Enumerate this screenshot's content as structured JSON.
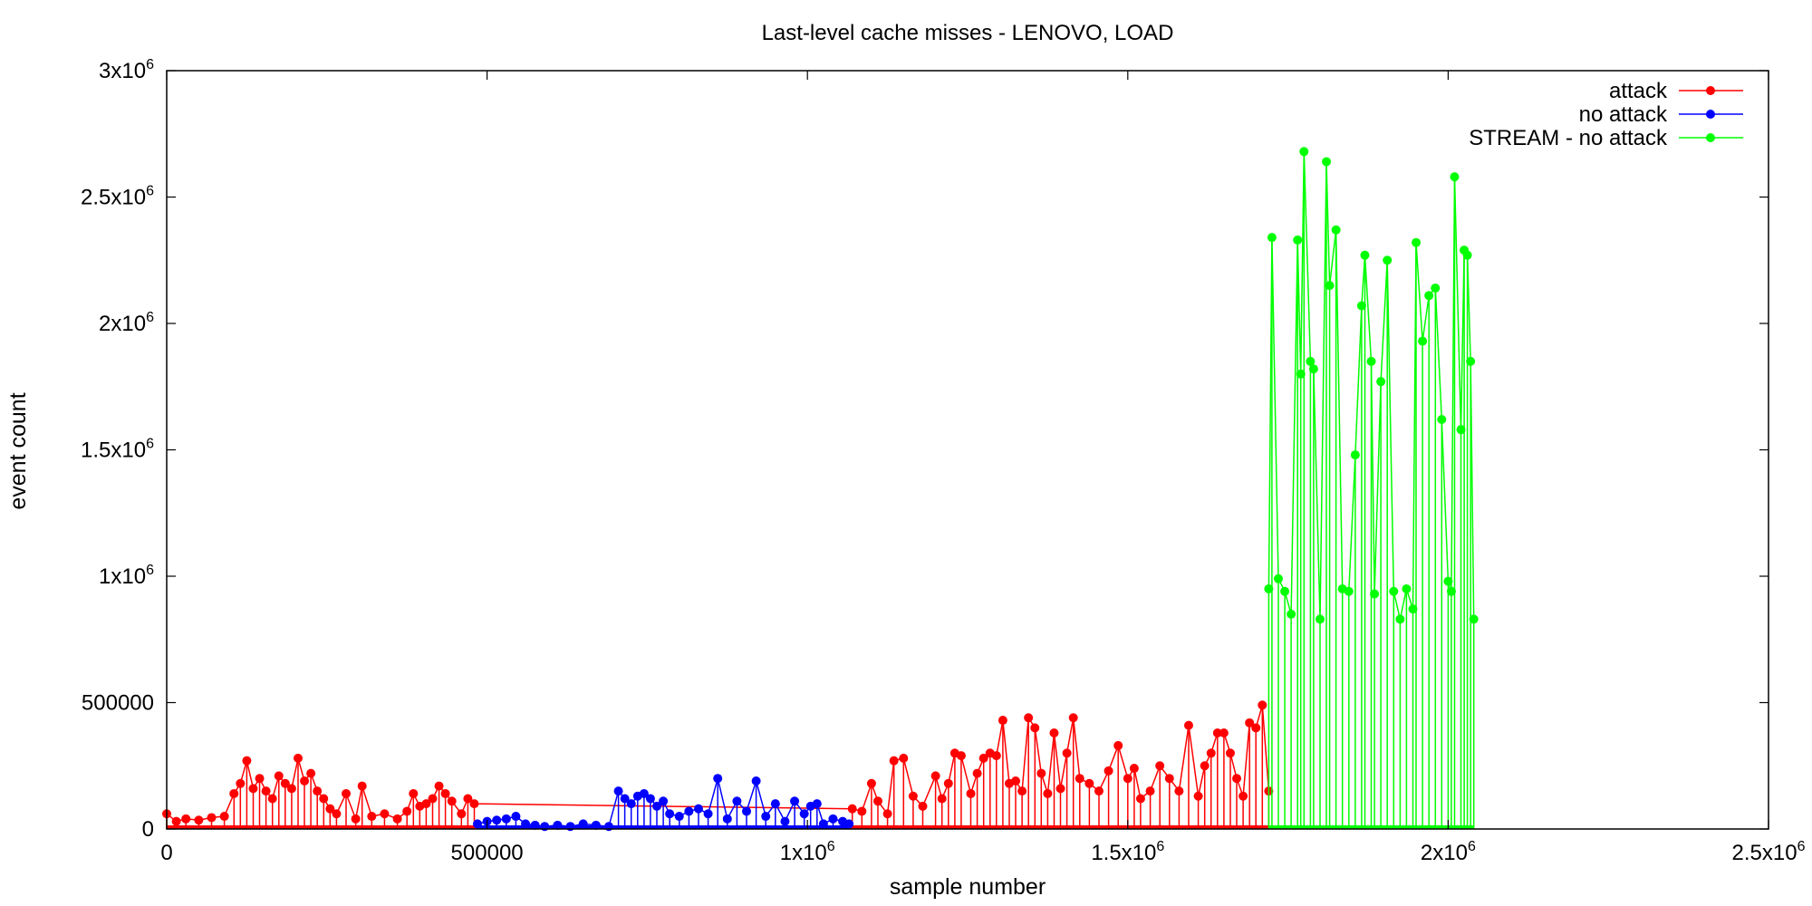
{
  "chart_data": {
    "type": "line",
    "title": "Last-level cache misses - LENOVO, LOAD",
    "xlabel": "sample number",
    "ylabel": "event count",
    "xlim": [
      0,
      2500000
    ],
    "ylim": [
      0,
      3000000
    ],
    "grid": false,
    "legend_position": "top-right",
    "x_ticks": [
      {
        "value": 0,
        "base": "0",
        "exp": ""
      },
      {
        "value": 500000,
        "base": "500000",
        "exp": ""
      },
      {
        "value": 1000000,
        "base": "1x10",
        "exp": "6"
      },
      {
        "value": 1500000,
        "base": "1.5x10",
        "exp": "6"
      },
      {
        "value": 2000000,
        "base": "2x10",
        "exp": "6"
      },
      {
        "value": 2500000,
        "base": "2.5x10",
        "exp": "6"
      }
    ],
    "y_ticks": [
      {
        "value": 0,
        "base": "0",
        "exp": ""
      },
      {
        "value": 500000,
        "base": "500000",
        "exp": ""
      },
      {
        "value": 1000000,
        "base": "1x10",
        "exp": "6"
      },
      {
        "value": 1500000,
        "base": "1.5x10",
        "exp": "6"
      },
      {
        "value": 2000000,
        "base": "2x10",
        "exp": "6"
      },
      {
        "value": 2500000,
        "base": "2.5x10",
        "exp": "6"
      },
      {
        "value": 3000000,
        "base": "3x10",
        "exp": "6"
      }
    ],
    "series": [
      {
        "name": "attack",
        "color": "#ff0000",
        "x": [
          0,
          15000,
          30000,
          50000,
          70000,
          90000,
          105000,
          115000,
          125000,
          135000,
          145000,
          155000,
          165000,
          175000,
          185000,
          195000,
          205000,
          215000,
          225000,
          235000,
          245000,
          255000,
          265000,
          280000,
          295000,
          305000,
          320000,
          340000,
          360000,
          375000,
          385000,
          395000,
          405000,
          415000,
          425000,
          435000,
          445000,
          460000,
          470000,
          480000,
          1070000,
          1085000,
          1100000,
          1110000,
          1125000,
          1135000,
          1150000,
          1165000,
          1180000,
          1200000,
          1210000,
          1220000,
          1230000,
          1240000,
          1255000,
          1265000,
          1275000,
          1285000,
          1295000,
          1305000,
          1315000,
          1325000,
          1335000,
          1345000,
          1355000,
          1365000,
          1375000,
          1385000,
          1395000,
          1405000,
          1415000,
          1425000,
          1440000,
          1455000,
          1470000,
          1485000,
          1500000,
          1510000,
          1520000,
          1535000,
          1550000,
          1565000,
          1580000,
          1595000,
          1610000,
          1620000,
          1630000,
          1640000,
          1650000,
          1660000,
          1670000,
          1680000,
          1690000,
          1700000,
          1710000,
          1720000
        ],
        "y": [
          60000,
          30000,
          40000,
          35000,
          45000,
          50000,
          140000,
          180000,
          270000,
          160000,
          200000,
          150000,
          120000,
          210000,
          180000,
          160000,
          280000,
          190000,
          220000,
          150000,
          120000,
          80000,
          60000,
          140000,
          40000,
          170000,
          50000,
          60000,
          40000,
          70000,
          140000,
          90000,
          100000,
          120000,
          170000,
          140000,
          110000,
          60000,
          120000,
          100000,
          80000,
          70000,
          180000,
          110000,
          60000,
          270000,
          280000,
          130000,
          90000,
          210000,
          120000,
          180000,
          300000,
          290000,
          140000,
          220000,
          280000,
          300000,
          290000,
          430000,
          180000,
          190000,
          150000,
          440000,
          400000,
          220000,
          140000,
          380000,
          160000,
          300000,
          440000,
          200000,
          180000,
          150000,
          230000,
          330000,
          200000,
          240000,
          120000,
          150000,
          250000,
          200000,
          150000,
          410000,
          130000,
          250000,
          300000,
          380000,
          380000,
          300000,
          200000,
          130000,
          420000,
          400000,
          490000,
          150000
        ]
      },
      {
        "name": "no attack",
        "color": "#0000ff",
        "x": [
          485000,
          500000,
          515000,
          530000,
          545000,
          560000,
          575000,
          590000,
          610000,
          630000,
          650000,
          670000,
          690000,
          705000,
          715000,
          725000,
          735000,
          745000,
          755000,
          765000,
          775000,
          785000,
          800000,
          815000,
          830000,
          845000,
          860000,
          875000,
          890000,
          905000,
          920000,
          935000,
          950000,
          965000,
          980000,
          995000,
          1005000,
          1015000,
          1025000,
          1040000,
          1055000,
          1065000
        ],
        "y": [
          20000,
          30000,
          35000,
          40000,
          50000,
          20000,
          15000,
          10000,
          15000,
          10000,
          20000,
          15000,
          10000,
          150000,
          120000,
          100000,
          130000,
          140000,
          120000,
          90000,
          110000,
          60000,
          50000,
          70000,
          80000,
          60000,
          200000,
          40000,
          110000,
          70000,
          190000,
          50000,
          100000,
          30000,
          110000,
          60000,
          90000,
          100000,
          20000,
          40000,
          30000,
          20000
        ]
      },
      {
        "name": "STREAM - no attack",
        "color": "#00ff00",
        "x": [
          1720000,
          1725000,
          1735000,
          1745000,
          1755000,
          1765000,
          1770000,
          1775000,
          1785000,
          1790000,
          1800000,
          1810000,
          1815000,
          1825000,
          1835000,
          1845000,
          1855000,
          1865000,
          1870000,
          1880000,
          1885000,
          1895000,
          1905000,
          1915000,
          1925000,
          1935000,
          1945000,
          1950000,
          1960000,
          1970000,
          1980000,
          1990000,
          2000000,
          2005000,
          2010000,
          2020000,
          2025000,
          2030000,
          2035000,
          2040000
        ],
        "y": [
          950000,
          2340000,
          990000,
          940000,
          850000,
          2330000,
          1800000,
          2680000,
          1850000,
          1820000,
          830000,
          2640000,
          2150000,
          2370000,
          950000,
          940000,
          1480000,
          2070000,
          2270000,
          1850000,
          930000,
          1770000,
          2250000,
          940000,
          830000,
          950000,
          870000,
          2320000,
          1930000,
          2110000,
          2140000,
          1620000,
          980000,
          940000,
          2580000,
          1580000,
          2290000,
          2270000,
          1850000,
          830000
        ]
      }
    ]
  }
}
